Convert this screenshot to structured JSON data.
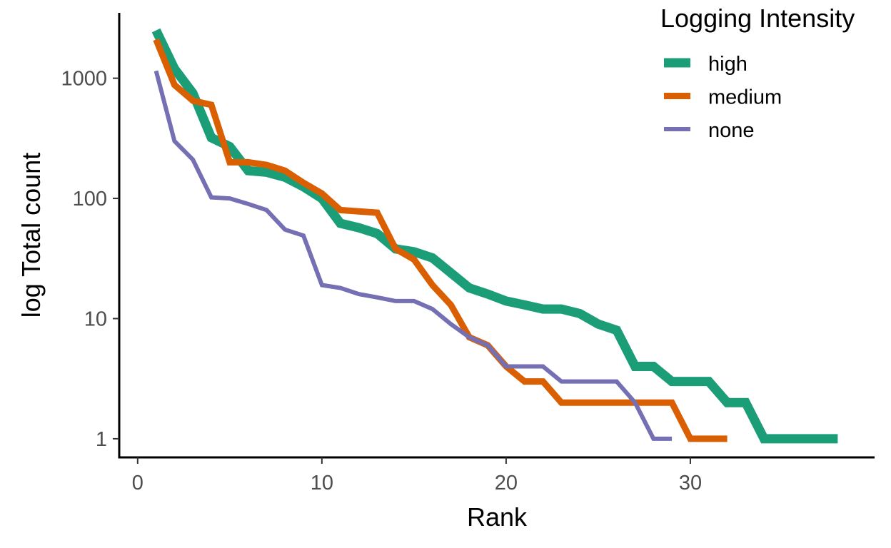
{
  "chart_data": {
    "type": "line",
    "xlabel": "Rank",
    "ylabel": "log Total count",
    "y_scale": "log10",
    "xlim": [
      -1,
      40
    ],
    "ylim": [
      0.7,
      3500
    ],
    "x_ticks": [
      0,
      10,
      20,
      30
    ],
    "x_tick_labels": [
      "0",
      "10",
      "20",
      "30"
    ],
    "y_ticks": [
      1,
      10,
      100,
      1000
    ],
    "y_tick_labels": [
      "1",
      "10",
      "100",
      "1000"
    ],
    "grid": false,
    "legend": {
      "title": "Logging Intensity",
      "position": "top-right"
    },
    "series": [
      {
        "name": "high",
        "color": "#1b9e77",
        "x": [
          1,
          2,
          3,
          4,
          5,
          6,
          7,
          8,
          9,
          10,
          11,
          12,
          13,
          14,
          15,
          16,
          17,
          18,
          19,
          20,
          21,
          22,
          23,
          24,
          25,
          26,
          27,
          28,
          29,
          30,
          31,
          32,
          33,
          34,
          35,
          36,
          37,
          38
        ],
        "y": [
          2500,
          1200,
          750,
          320,
          270,
          170,
          165,
          150,
          125,
          100,
          62,
          57,
          51,
          38,
          36,
          32,
          24,
          18,
          16,
          14,
          13,
          12,
          12,
          11,
          9,
          8,
          4,
          4,
          3,
          3,
          3,
          2,
          2,
          1,
          1,
          1,
          1,
          1
        ]
      },
      {
        "name": "medium",
        "color": "#d95f02",
        "x": [
          1,
          2,
          3,
          4,
          5,
          6,
          7,
          8,
          9,
          10,
          11,
          12,
          13,
          14,
          15,
          16,
          17,
          18,
          19,
          20,
          21,
          22,
          23,
          24,
          25,
          26,
          27,
          28,
          29,
          30,
          31,
          32
        ],
        "y": [
          2100,
          880,
          650,
          600,
          200,
          200,
          190,
          170,
          135,
          110,
          80,
          78,
          76,
          38,
          31,
          19,
          13,
          7,
          6,
          4,
          3,
          3,
          2,
          2,
          2,
          2,
          2,
          2,
          2,
          1,
          1,
          1
        ]
      },
      {
        "name": "none",
        "color": "#7570b3",
        "x": [
          1,
          2,
          3,
          4,
          5,
          6,
          7,
          8,
          9,
          10,
          11,
          12,
          13,
          14,
          15,
          16,
          17,
          18,
          19,
          20,
          21,
          22,
          23,
          24,
          25,
          26,
          27,
          28,
          29
        ],
        "y": [
          1150,
          300,
          210,
          102,
          100,
          90,
          80,
          55,
          49,
          19,
          18,
          16,
          15,
          14,
          14,
          12,
          9,
          7,
          6,
          4,
          4,
          4,
          3,
          3,
          3,
          3,
          2,
          1,
          1
        ]
      }
    ]
  }
}
